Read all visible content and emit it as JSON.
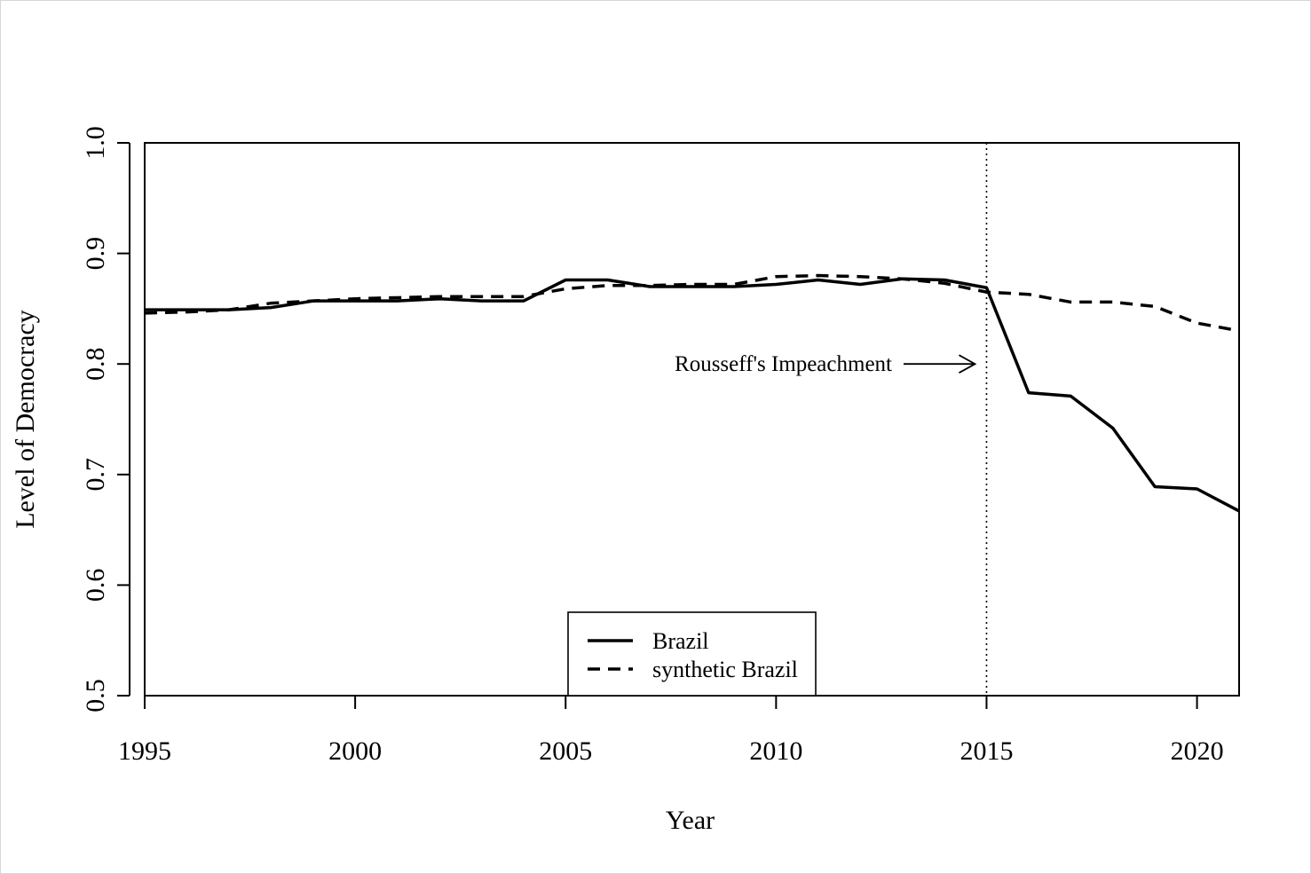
{
  "chart_data": {
    "type": "line",
    "xlabel": "Year",
    "ylabel": "Level of Democracy",
    "xlim": [
      1995,
      2021
    ],
    "ylim": [
      0.5,
      1.0
    ],
    "xticks": [
      1995,
      2000,
      2005,
      2010,
      2015,
      2020
    ],
    "yticks": [
      "0.5",
      "0.6",
      "0.7",
      "0.8",
      "0.9",
      "1.0"
    ],
    "grid": false,
    "legend_position": "bottom-center",
    "x": [
      1995,
      1996,
      1997,
      1998,
      1999,
      2000,
      2001,
      2002,
      2003,
      2004,
      2005,
      2006,
      2007,
      2008,
      2009,
      2010,
      2011,
      2012,
      2013,
      2014,
      2015,
      2016,
      2017,
      2018,
      2019,
      2020,
      2021
    ],
    "series": [
      {
        "name": "Brazil",
        "style": "solid",
        "color": "#000000",
        "values": [
          0.849,
          0.849,
          0.849,
          0.851,
          0.857,
          0.857,
          0.857,
          0.859,
          0.857,
          0.857,
          0.876,
          0.876,
          0.87,
          0.87,
          0.87,
          0.872,
          0.876,
          0.872,
          0.877,
          0.876,
          0.869,
          0.774,
          0.771,
          0.742,
          0.689,
          0.687,
          0.667
        ]
      },
      {
        "name": "synthetic Brazil",
        "style": "dashed",
        "color": "#000000",
        "values": [
          0.846,
          0.847,
          0.849,
          0.855,
          0.857,
          0.859,
          0.86,
          0.861,
          0.861,
          0.861,
          0.868,
          0.871,
          0.871,
          0.872,
          0.872,
          0.879,
          0.88,
          0.879,
          0.877,
          0.873,
          0.865,
          0.863,
          0.856,
          0.856,
          0.852,
          0.837,
          0.83
        ]
      }
    ],
    "vline": {
      "x": 2015,
      "style": "dotted"
    },
    "annotation": {
      "text": "Rousseff's Impeachment",
      "arrow_to": [
        2015,
        0.8
      ]
    }
  }
}
